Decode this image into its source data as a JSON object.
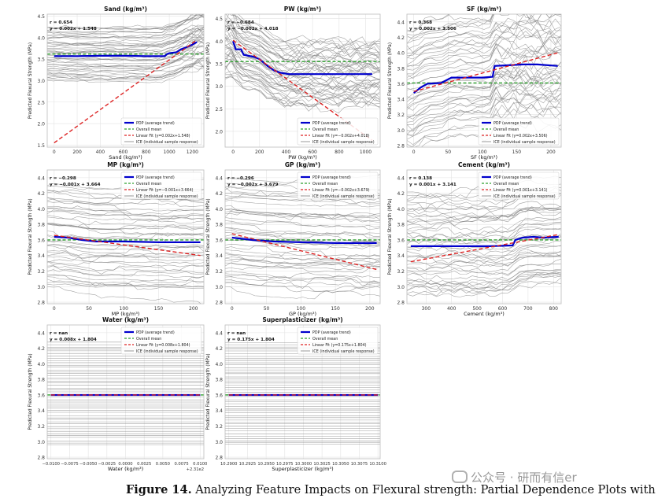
{
  "figure": {
    "caption_label": "Figure 14.",
    "caption_text": "Analyzing Feature Impacts on Flexural strength: Partial Dependence Plots with ICE",
    "watermark": "公众号 · 研而有信er"
  },
  "legend_labels": {
    "pdp": "PDP (average trend)",
    "mean": "Overall mean",
    "ice": "ICE (individual sample response)"
  },
  "colors": {
    "pdp": "#0000cc",
    "mean": "#2ca02c",
    "fit": "#dd2222",
    "ice": "#7f7f7f"
  },
  "chart_data": [
    {
      "type": "line",
      "title": "Sand (kg/m³)",
      "xlabel": "Sand (kg/m³)",
      "ylabel": "Predicted Flexural Strength (MPa)",
      "xlim": [
        -60,
        1300
      ],
      "ylim": [
        1.45,
        4.55
      ],
      "xticks": [
        0,
        200,
        400,
        600,
        800,
        1000,
        1200
      ],
      "yticks": [
        1.5,
        2.0,
        2.5,
        3.0,
        3.5,
        4.0,
        4.5
      ],
      "stats": [
        "r = 0.654",
        "y = 0.002x + 1.548"
      ],
      "fit_label": "Linear Fit (y=0.002x+1.548)",
      "mean": 3.62,
      "fit": [
        [
          0,
          1.55
        ],
        [
          1240,
          3.95
        ]
      ],
      "pdp": [
        [
          0,
          3.57
        ],
        [
          200,
          3.57
        ],
        [
          400,
          3.58
        ],
        [
          600,
          3.58
        ],
        [
          800,
          3.57
        ],
        [
          960,
          3.57
        ],
        [
          980,
          3.62
        ],
        [
          1000,
          3.64
        ],
        [
          1060,
          3.66
        ],
        [
          1100,
          3.73
        ],
        [
          1150,
          3.78
        ],
        [
          1200,
          3.84
        ],
        [
          1240,
          3.9
        ]
      ],
      "ice_range": [
        3.05,
        4.3
      ]
    },
    {
      "type": "line",
      "title": "PW (kg/m³)",
      "xlabel": "PW (kg/m³)",
      "ylabel": "Predicted Flexural Strength (MPa)",
      "xlim": [
        -60,
        1110
      ],
      "ylim": [
        1.65,
        4.6
      ],
      "xticks": [
        0,
        200,
        400,
        600,
        800,
        1000
      ],
      "yticks": [
        2.0,
        2.5,
        3.0,
        3.5,
        4.0,
        4.5
      ],
      "stats": [
        "r = −0.684",
        "y = −0.002x + 4.018"
      ],
      "fit_label": "Linear Fit (y=−0.002x+4.018)",
      "mean": 3.55,
      "fit": [
        [
          0,
          4.02
        ],
        [
          1050,
          1.8
        ]
      ],
      "pdp": [
        [
          0,
          4.0
        ],
        [
          20,
          3.82
        ],
        [
          60,
          3.82
        ],
        [
          80,
          3.7
        ],
        [
          160,
          3.65
        ],
        [
          200,
          3.6
        ],
        [
          260,
          3.45
        ],
        [
          310,
          3.35
        ],
        [
          360,
          3.3
        ],
        [
          420,
          3.27
        ],
        [
          700,
          3.27
        ],
        [
          1050,
          3.27
        ]
      ],
      "ice_range": [
        2.8,
        4.3
      ]
    },
    {
      "type": "line",
      "title": "SF (kg/m³)",
      "xlabel": "SF (kg/m³)",
      "ylabel": "Predicted Flexural Strength (MPa)",
      "xlim": [
        -10,
        215
      ],
      "ylim": [
        2.78,
        4.5
      ],
      "xticks": [
        0,
        50,
        100,
        150,
        200
      ],
      "yticks": [
        2.8,
        3.0,
        3.2,
        3.4,
        3.6,
        3.8,
        4.0,
        4.2,
        4.4
      ],
      "stats": [
        "r = 0.368",
        "y = 0.002x + 3.506"
      ],
      "fit_label": "Linear Fit (y=0.002x+3.506)",
      "mean": 3.61,
      "fit": [
        [
          0,
          3.5
        ],
        [
          210,
          4.0
        ]
      ],
      "pdp": [
        [
          0,
          3.48
        ],
        [
          10,
          3.55
        ],
        [
          20,
          3.6
        ],
        [
          40,
          3.61
        ],
        [
          55,
          3.68
        ],
        [
          60,
          3.68
        ],
        [
          80,
          3.68
        ],
        [
          100,
          3.68
        ],
        [
          115,
          3.69
        ],
        [
          118,
          3.83
        ],
        [
          160,
          3.85
        ],
        [
          180,
          3.85
        ],
        [
          210,
          3.83
        ]
      ],
      "ice_range": [
        2.85,
        4.45
      ]
    },
    {
      "type": "line",
      "title": "MP (kg/m³)",
      "xlabel": "MP (kg/m³)",
      "ylabel": "Predicted Flexural Strength (MPa)",
      "xlim": [
        -10,
        215
      ],
      "ylim": [
        2.78,
        4.5
      ],
      "xticks": [
        0,
        50,
        100,
        150,
        200
      ],
      "yticks": [
        2.8,
        3.0,
        3.2,
        3.4,
        3.6,
        3.8,
        4.0,
        4.2,
        4.4
      ],
      "stats": [
        "r = −0.298",
        "y = −0.001x + 3.664"
      ],
      "fit_label": "Linear Fit (y=−0.001x+3.664)",
      "mean": 3.6,
      "fit": [
        [
          0,
          3.66
        ],
        [
          210,
          3.4
        ]
      ],
      "pdp": [
        [
          0,
          3.64
        ],
        [
          20,
          3.63
        ],
        [
          40,
          3.6
        ],
        [
          60,
          3.58
        ],
        [
          100,
          3.58
        ],
        [
          150,
          3.57
        ],
        [
          210,
          3.57
        ]
      ],
      "ice_range": [
        2.95,
        4.3
      ]
    },
    {
      "type": "line",
      "title": "GP (kg/m³)",
      "xlabel": "GP (kg/m³)",
      "ylabel": "Predicted Flexural Strength (MPa)",
      "xlim": [
        -10,
        215
      ],
      "ylim": [
        2.78,
        4.5
      ],
      "xticks": [
        0,
        50,
        100,
        150,
        200
      ],
      "yticks": [
        2.8,
        3.0,
        3.2,
        3.4,
        3.6,
        3.8,
        4.0,
        4.2,
        4.4
      ],
      "stats": [
        "r = −0.296",
        "y = −0.002x + 3.679"
      ],
      "fit_label": "Linear Fit (y=−0.002x+3.679)",
      "mean": 3.6,
      "fit": [
        [
          0,
          3.68
        ],
        [
          210,
          3.22
        ]
      ],
      "pdp": [
        [
          0,
          3.63
        ],
        [
          30,
          3.6
        ],
        [
          60,
          3.58
        ],
        [
          100,
          3.57
        ],
        [
          150,
          3.56
        ],
        [
          210,
          3.56
        ]
      ],
      "ice_range": [
        2.95,
        4.35
      ]
    },
    {
      "type": "line",
      "title": "Cement (kg/m³)",
      "xlabel": "Cement (kg/m³)",
      "ylabel": "Predicted Flexural Strength (MPa)",
      "xlim": [
        225,
        830
      ],
      "ylim": [
        2.78,
        4.5
      ],
      "xticks": [
        300,
        400,
        500,
        600,
        700,
        800
      ],
      "yticks": [
        2.8,
        3.0,
        3.2,
        3.4,
        3.6,
        3.8,
        4.0,
        4.2,
        4.4
      ],
      "stats": [
        "r = 0.138",
        "y = 0.001x + 3.141"
      ],
      "fit_label": "Linear Fit (y=0.001x+3.141)",
      "mean": 3.6,
      "fit": [
        [
          240,
          3.32
        ],
        [
          820,
          3.67
        ]
      ],
      "pdp": [
        [
          240,
          3.52
        ],
        [
          400,
          3.52
        ],
        [
          550,
          3.52
        ],
        [
          640,
          3.53
        ],
        [
          650,
          3.6
        ],
        [
          680,
          3.63
        ],
        [
          720,
          3.64
        ],
        [
          760,
          3.63
        ],
        [
          820,
          3.64
        ]
      ],
      "ice_range": [
        2.95,
        4.3
      ]
    },
    {
      "type": "line",
      "title": "Water (kg/m³)",
      "xlabel": "Water (kg/m³)",
      "ylabel": "Predicted Flexural Strength (MPa)",
      "xlim": [
        -0.0105,
        0.0105
      ],
      "ylim": [
        2.78,
        4.5
      ],
      "xticks": [
        -0.01,
        -0.0075,
        -0.005,
        -0.0025,
        0.0,
        0.0025,
        0.005,
        0.0075,
        0.01
      ],
      "xtick_labels": [
        "−0.0100",
        "−0.0075",
        "−0.0050",
        "−0.0025",
        "0.0000",
        "0.0025",
        "0.0050",
        "0.0075",
        "0.0100"
      ],
      "x_offset_label": "+2.31e2",
      "yticks": [
        2.8,
        3.0,
        3.2,
        3.4,
        3.6,
        3.8,
        4.0,
        4.2,
        4.4
      ],
      "stats": [
        "r = nan",
        "y = 0.008x + 1.804"
      ],
      "fit_label": "Linear Fit (y=0.008x+1.804)",
      "mean": 3.6,
      "fit": [
        [
          -0.01,
          3.6
        ],
        [
          0.01,
          3.6
        ]
      ],
      "pdp": [
        [
          -0.01,
          3.6
        ],
        [
          0.01,
          3.6
        ]
      ],
      "ice_range": [
        2.95,
        4.3
      ]
    },
    {
      "type": "line",
      "title": "Superplasticizer (kg/m³)",
      "xlabel": "Superplasticizer (kg/m³)",
      "ylabel": "Predicted Flexural Strength (MPa)",
      "xlim": [
        10.2895,
        10.3103
      ],
      "ylim": [
        2.78,
        4.5
      ],
      "xticks": [
        10.29,
        10.2925,
        10.295,
        10.2975,
        10.3,
        10.3025,
        10.305,
        10.3075,
        10.31
      ],
      "xtick_labels": [
        "10.2900",
        "10.2925",
        "10.2950",
        "10.2975",
        "10.3000",
        "10.3025",
        "10.3050",
        "10.3075",
        "10.3100"
      ],
      "yticks": [
        2.8,
        3.0,
        3.2,
        3.4,
        3.6,
        3.8,
        4.0,
        4.2,
        4.4
      ],
      "stats": [
        "r = nan",
        "y = 0.175x + 1.804"
      ],
      "fit_label": "Linear Fit (y=0.175x+1.804)",
      "mean": 3.6,
      "fit": [
        [
          10.29,
          3.6
        ],
        [
          10.31,
          3.6
        ]
      ],
      "pdp": [
        [
          10.29,
          3.6
        ],
        [
          10.31,
          3.6
        ]
      ],
      "ice_range": [
        2.95,
        4.3
      ]
    }
  ]
}
